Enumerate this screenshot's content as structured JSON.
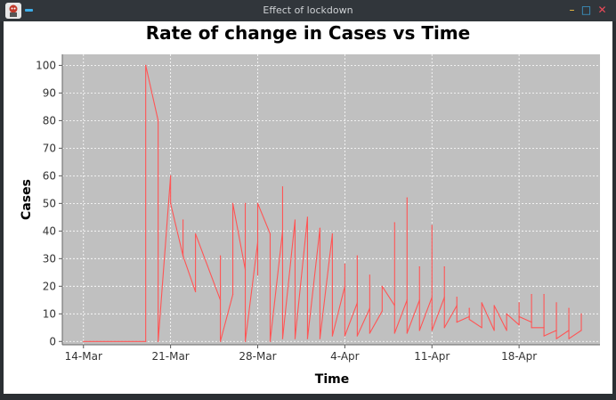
{
  "window": {
    "title": "Effect of lockdown",
    "icons": [
      "app-icon",
      "menu-icon",
      "minimize-icon",
      "maximize-icon",
      "close-icon"
    ],
    "controls": {
      "minimize": "–",
      "maximize": "□",
      "close": "✕"
    }
  },
  "colors": {
    "titlebar": "#31363b",
    "plot_background": "#c0c0c0",
    "series": "#ff5555",
    "grid": "#ffffff"
  },
  "chart_data": {
    "type": "line",
    "title": "Rate of change in Cases vs Time",
    "xlabel": "Time",
    "ylabel": "Cases",
    "x_range": [
      -1.7,
      41.5
    ],
    "ylim": [
      -1.2,
      104
    ],
    "x_ticks": [
      {
        "label": "14-Mar",
        "day": 0
      },
      {
        "label": "21-Mar",
        "day": 7
      },
      {
        "label": "28-Mar",
        "day": 14
      },
      {
        "label": "4-Apr",
        "day": 21
      },
      {
        "label": "11-Apr",
        "day": 28
      },
      {
        "label": "18-Apr",
        "day": 35
      }
    ],
    "y_ticks": [
      0,
      10,
      20,
      30,
      40,
      50,
      60,
      70,
      80,
      90,
      100
    ],
    "grid": true,
    "series": [
      {
        "name": "Rate of change",
        "points": [
          [
            0.0,
            0
          ],
          [
            5.0,
            0
          ],
          [
            5.0,
            100
          ],
          [
            6.0,
            80
          ],
          [
            6.0,
            0
          ],
          [
            7.0,
            60
          ],
          [
            7.0,
            50
          ],
          [
            8.0,
            31
          ],
          [
            8.0,
            44
          ],
          [
            8.0,
            31
          ],
          [
            9.0,
            18
          ],
          [
            9.0,
            39
          ],
          [
            11.0,
            15
          ],
          [
            11.0,
            31
          ],
          [
            11.0,
            0
          ],
          [
            12.0,
            17
          ],
          [
            12.0,
            50
          ],
          [
            13.0,
            26
          ],
          [
            13.0,
            50
          ],
          [
            13.0,
            0
          ],
          [
            14.0,
            36
          ],
          [
            14.0,
            24
          ],
          [
            14.0,
            50
          ],
          [
            15.0,
            39
          ],
          [
            15.0,
            0
          ],
          [
            16.0,
            40
          ],
          [
            16.0,
            56
          ],
          [
            16.0,
            1
          ],
          [
            17.0,
            44
          ],
          [
            17.0,
            31
          ],
          [
            17.0,
            1
          ],
          [
            18.0,
            45
          ],
          [
            18.0,
            38
          ],
          [
            18.0,
            1
          ],
          [
            19.0,
            41
          ],
          [
            19.0,
            30
          ],
          [
            19.0,
            1
          ],
          [
            20.0,
            39
          ],
          [
            20.0,
            30
          ],
          [
            20.0,
            2
          ],
          [
            21.0,
            20
          ],
          [
            21.0,
            28
          ],
          [
            21.0,
            2
          ],
          [
            22.0,
            14
          ],
          [
            22.0,
            31
          ],
          [
            22.0,
            2
          ],
          [
            23.0,
            12
          ],
          [
            23.0,
            24
          ],
          [
            23.0,
            3
          ],
          [
            24.0,
            11
          ],
          [
            24.0,
            20
          ],
          [
            25.0,
            13
          ],
          [
            25.0,
            43
          ],
          [
            25.0,
            3
          ],
          [
            26.0,
            15
          ],
          [
            26.0,
            52
          ],
          [
            26.0,
            3
          ],
          [
            27.0,
            15
          ],
          [
            27.0,
            27
          ],
          [
            27.0,
            4
          ],
          [
            28.0,
            16
          ],
          [
            28.0,
            42
          ],
          [
            28.0,
            4
          ],
          [
            29.0,
            16
          ],
          [
            29.0,
            27
          ],
          [
            29.0,
            5
          ],
          [
            30.0,
            13
          ],
          [
            30.0,
            16
          ],
          [
            30.0,
            7
          ],
          [
            31.0,
            9
          ],
          [
            31.0,
            12
          ],
          [
            31.0,
            8
          ],
          [
            32.0,
            5
          ],
          [
            32.0,
            14
          ],
          [
            33.0,
            4
          ],
          [
            33.0,
            13
          ],
          [
            34.0,
            4
          ],
          [
            34.0,
            10
          ],
          [
            35.0,
            6
          ],
          [
            35.0,
            14
          ],
          [
            35.0,
            9
          ],
          [
            36.0,
            7
          ],
          [
            36.0,
            17
          ],
          [
            36.0,
            5
          ],
          [
            37.0,
            5
          ],
          [
            37.0,
            17
          ],
          [
            37.0,
            2
          ],
          [
            38.0,
            4
          ],
          [
            38.0,
            14
          ],
          [
            38.0,
            1
          ],
          [
            39.0,
            4
          ],
          [
            39.0,
            12
          ],
          [
            39.0,
            1
          ],
          [
            40.0,
            4
          ],
          [
            40.0,
            10
          ]
        ]
      }
    ]
  }
}
